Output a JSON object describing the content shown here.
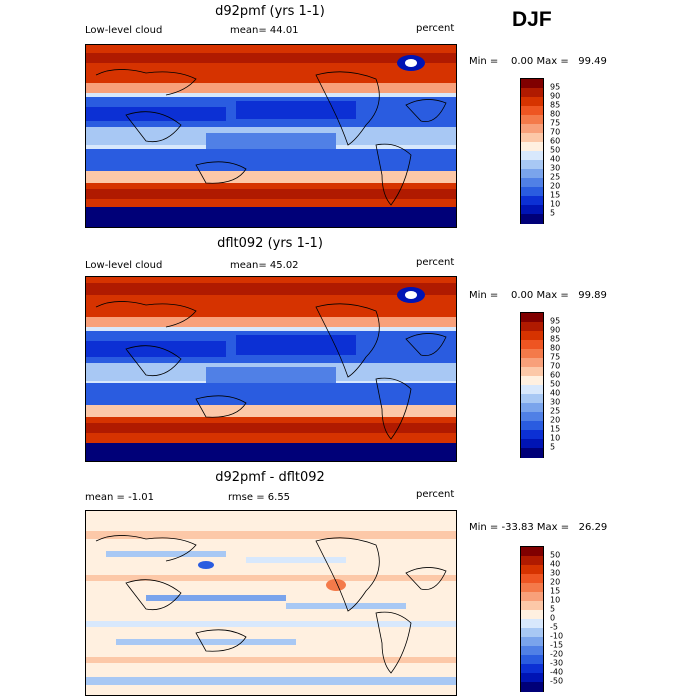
{
  "season": "DJF",
  "panels": [
    {
      "title": "d92pmf (yrs 1-1)",
      "left_label": "Low-level cloud",
      "mean_label": "mean=  44.01",
      "units": "percent",
      "minmax": "Min =    0.00 Max =   99.49",
      "colorbar": {
        "labels": [
          "95",
          "90",
          "85",
          "80",
          "75",
          "70",
          "60",
          "50",
          "40",
          "30",
          "25",
          "20",
          "15",
          "10",
          "5"
        ],
        "colors": [
          "#800000",
          "#b01a00",
          "#d63300",
          "#ee5522",
          "#f47a4a",
          "#f8a07a",
          "#fcc8a8",
          "#fff0e0",
          "#d8e8fc",
          "#a8c8f4",
          "#7aa4ec",
          "#5080e6",
          "#2a5ce0",
          "#0c30d4",
          "#0014b4",
          "#000078"
        ]
      }
    },
    {
      "title": "dflt092 (yrs 1-1)",
      "left_label": "Low-level cloud",
      "mean_label": "mean=  45.02",
      "units": "percent",
      "minmax": "Min =    0.00 Max =   99.89",
      "colorbar": {
        "labels": [
          "95",
          "90",
          "85",
          "80",
          "75",
          "70",
          "60",
          "50",
          "40",
          "30",
          "25",
          "20",
          "15",
          "10",
          "5"
        ],
        "colors": [
          "#800000",
          "#b01a00",
          "#d63300",
          "#ee5522",
          "#f47a4a",
          "#f8a07a",
          "#fcc8a8",
          "#fff0e0",
          "#d8e8fc",
          "#a8c8f4",
          "#7aa4ec",
          "#5080e6",
          "#2a5ce0",
          "#0c30d4",
          "#0014b4",
          "#000078"
        ]
      }
    },
    {
      "title": "d92pmf - dflt092",
      "left_label": "mean =   -1.01",
      "mean_label": "rmse =    6.55",
      "units": "percent",
      "minmax": "Min = -33.83 Max =   26.29",
      "colorbar": {
        "labels": [
          "50",
          "40",
          "30",
          "20",
          "15",
          "10",
          "5",
          "0",
          "-5",
          "-10",
          "-15",
          "-20",
          "-30",
          "-40",
          "-50"
        ],
        "colors": [
          "#800000",
          "#b01a00",
          "#d63300",
          "#ee5522",
          "#f47a4a",
          "#f8a07a",
          "#fcc8a8",
          "#fff0e0",
          "#d8e8fc",
          "#a8c8f4",
          "#7aa4ec",
          "#5080e6",
          "#2a5ce0",
          "#0c30d4",
          "#0014b4",
          "#000078"
        ]
      }
    }
  ]
}
